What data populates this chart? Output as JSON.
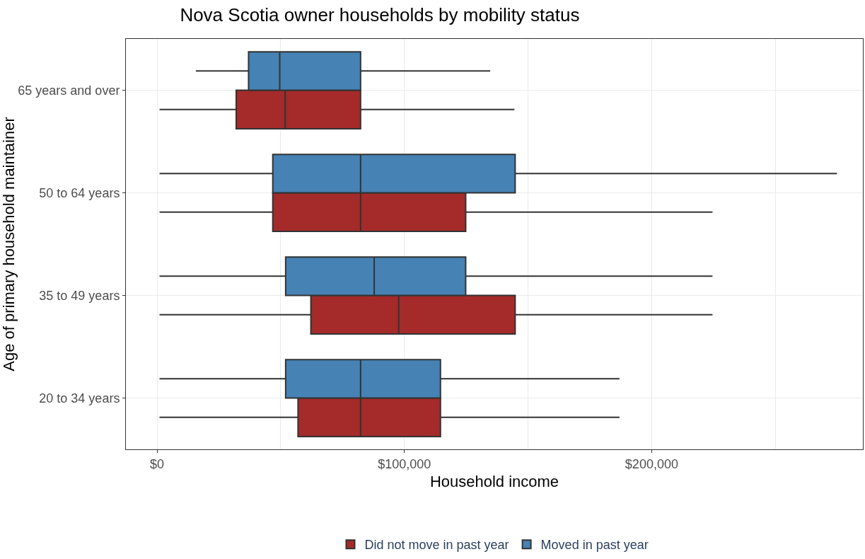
{
  "chart_data": {
    "type": "box",
    "orientation": "horizontal",
    "title": "Nova Scotia owner households by mobility status",
    "xlabel": "Household income",
    "ylabel": "Age of primary household maintainer",
    "categories": [
      "65 years and over",
      "50 to 64 years",
      "35 to 49 years",
      "20 to 34 years"
    ],
    "xlim": [
      -12600,
      285400
    ],
    "xticks": [
      {
        "value": 0,
        "label": "$0"
      },
      {
        "value": 50000,
        "label": null
      },
      {
        "value": 100000,
        "label": "$100,000"
      },
      {
        "value": 150000,
        "label": null
      },
      {
        "value": 200000,
        "label": "$200,000"
      },
      {
        "value": 250000,
        "label": null
      }
    ],
    "grid": true,
    "legend": "bottom",
    "series": [
      {
        "name": "Did not move in past year",
        "color": "#a52a2a",
        "boxes": [
          {
            "low": 1000,
            "q1": 32000,
            "median": 51800,
            "q3": 82300,
            "high": 144500
          },
          {
            "low": 1000,
            "q1": 46800,
            "median": 82300,
            "q3": 124800,
            "high": 224600
          },
          {
            "low": 1000,
            "q1": 62200,
            "median": 97700,
            "q3": 144800,
            "high": 224600
          },
          {
            "low": 1000,
            "q1": 57000,
            "median": 82300,
            "q3": 114600,
            "high": 187000
          }
        ]
      },
      {
        "name": "Moved in past year",
        "color": "#4682b4",
        "boxes": [
          {
            "low": 15700,
            "q1": 37000,
            "median": 49600,
            "q3": 82300,
            "high": 134700
          },
          {
            "low": 1000,
            "q1": 46800,
            "median": 82300,
            "q3": 144800,
            "high": 274900
          },
          {
            "low": 1000,
            "q1": 52000,
            "median": 87800,
            "q3": 124800,
            "high": 224600
          },
          {
            "low": 1000,
            "q1": 52000,
            "median": 82300,
            "q3": 114600,
            "high": 187000
          }
        ]
      }
    ]
  }
}
